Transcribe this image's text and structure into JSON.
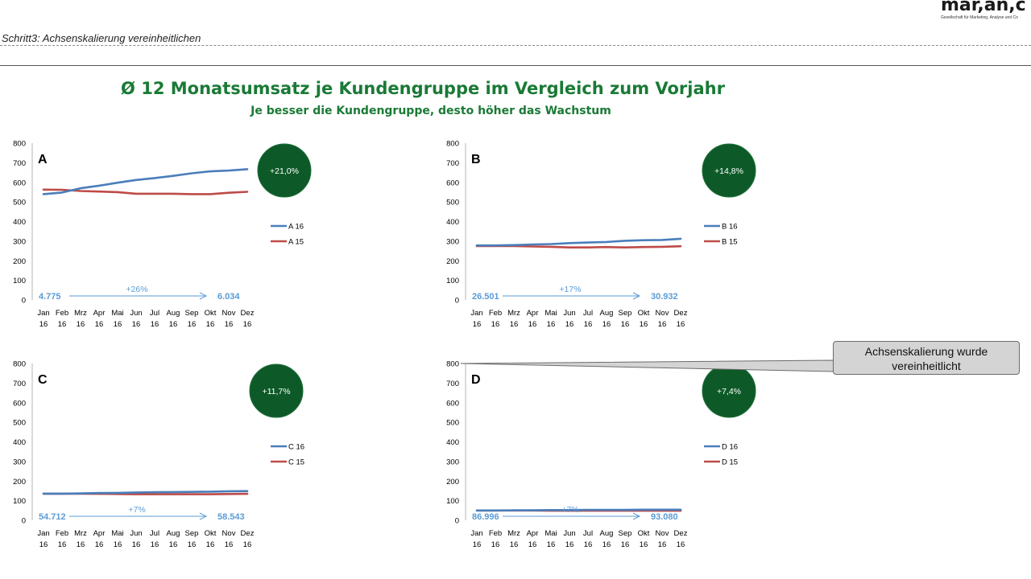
{
  "header": {
    "logo_text": "mar,an,c",
    "logo_tagline": "Gesellschaft für Marketing, Analyse und Co",
    "step_title": "Schritt3: Achsenskalierung vereinheitlichen"
  },
  "title": "Ø 12 Monatsumsatz je Kundengruppe im Vergleich zum Vorjahr",
  "subtitle": "Je besser die Kundengruppe, desto höher das Wachstum",
  "callout": {
    "line1": "Achsenskalierung wurde",
    "line2": "vereinheitlicht"
  },
  "colors": {
    "series_current": "#4a7ebb",
    "series_previous": "#be4b48",
    "badge": "#0d5a28",
    "annotation": "#5b9bd5",
    "title": "#1a7a36"
  },
  "chart_data": [
    {
      "type": "line",
      "label": "A",
      "categories": [
        "Jan 16",
        "Feb 16",
        "Mrz 16",
        "Apr 16",
        "Mai 16",
        "Jun 16",
        "Jul 16",
        "Aug 16",
        "Sep 16",
        "Okt 16",
        "Nov 16",
        "Dez 16"
      ],
      "yticks": [
        0,
        100,
        200,
        300,
        400,
        500,
        600,
        700,
        800
      ],
      "ylim": [
        0,
        800
      ],
      "series": [
        {
          "name": "A 16",
          "values": [
            540,
            548,
            570,
            583,
            598,
            612,
            622,
            633,
            646,
            656,
            660,
            667
          ]
        },
        {
          "name": "A 15",
          "values": [
            563,
            562,
            556,
            553,
            550,
            542,
            542,
            542,
            540,
            540,
            547,
            552
          ]
        }
      ],
      "badge": "+21,0%",
      "start_value": "4.775",
      "end_value": "6.034",
      "growth": "+26%",
      "legend": "right"
    },
    {
      "type": "line",
      "label": "B",
      "categories": [
        "Jan 16",
        "Feb 16",
        "Mrz 16",
        "Apr 16",
        "Mai 16",
        "Jun 16",
        "Jul 16",
        "Aug 16",
        "Sep 16",
        "Okt 16",
        "Nov 16",
        "Dez 16"
      ],
      "yticks": [
        0,
        100,
        200,
        300,
        400,
        500,
        600,
        700,
        800
      ],
      "ylim": [
        0,
        800
      ],
      "series": [
        {
          "name": "B 16",
          "values": [
            278,
            278,
            280,
            283,
            285,
            290,
            293,
            296,
            302,
            305,
            306,
            312
          ]
        },
        {
          "name": "B 15",
          "values": [
            275,
            275,
            275,
            273,
            271,
            268,
            268,
            270,
            268,
            270,
            271,
            274
          ]
        }
      ],
      "badge": "+14,8%",
      "start_value": "26.501",
      "end_value": "30.932",
      "growth": "+17%",
      "legend": "right"
    },
    {
      "type": "line",
      "label": "C",
      "categories": [
        "Jan 16",
        "Feb 16",
        "Mrz 16",
        "Apr 16",
        "Mai 16",
        "Jun 16",
        "Jul 16",
        "Aug 16",
        "Sep 16",
        "Okt 16",
        "Nov 16",
        "Dez 16"
      ],
      "yticks": [
        0,
        100,
        200,
        300,
        400,
        500,
        600,
        700,
        800
      ],
      "ylim": [
        0,
        800
      ],
      "series": [
        {
          "name": "C 16",
          "values": [
            136,
            136,
            137,
            139,
            140,
            142,
            143,
            144,
            145,
            146,
            148,
            149
          ]
        },
        {
          "name": "C 15",
          "values": [
            136,
            136,
            136,
            135,
            134,
            133,
            133,
            133,
            133,
            133,
            134,
            135
          ]
        }
      ],
      "badge": "+11,7%",
      "start_value": "54.712",
      "end_value": "58.543",
      "growth": "+7%",
      "legend": "right"
    },
    {
      "type": "line",
      "label": "D",
      "categories": [
        "Jan 16",
        "Feb 16",
        "Mrz 16",
        "Apr 16",
        "Mai 16",
        "Jun 16",
        "Jul 16",
        "Aug 16",
        "Sep 16",
        "Okt 16",
        "Nov 16",
        "Dez 16"
      ],
      "yticks": [
        0,
        100,
        200,
        300,
        400,
        500,
        600,
        700,
        800
      ],
      "ylim": [
        0,
        800
      ],
      "series": [
        {
          "name": "D 16",
          "values": [
            50,
            50,
            51,
            51,
            52,
            52,
            53,
            53,
            53,
            54,
            54,
            54
          ]
        },
        {
          "name": "D 15",
          "values": [
            50,
            50,
            50,
            50,
            49,
            49,
            49,
            49,
            49,
            49,
            49,
            49
          ]
        }
      ],
      "badge": "+7,4%",
      "start_value": "86.996",
      "end_value": "93.080",
      "growth": "+7%",
      "legend": "right"
    }
  ]
}
